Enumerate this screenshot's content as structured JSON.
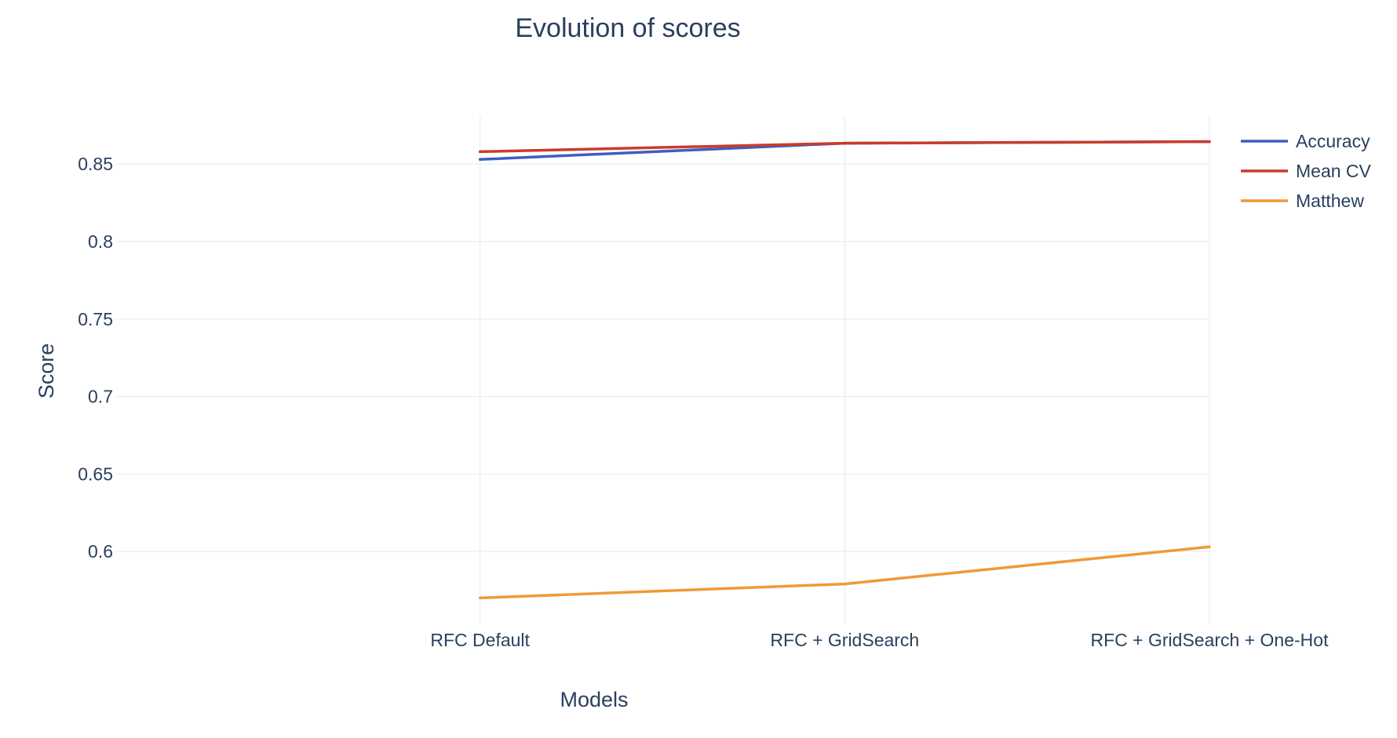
{
  "chart_data": {
    "type": "line",
    "title": "Evolution of scores",
    "xlabel": "Models",
    "ylabel": "Score",
    "categories": [
      "RFC Default",
      "RFC + GridSearch",
      "RFC + GridSearch + One-Hot"
    ],
    "x_range_categories": [
      -1,
      2
    ],
    "ylim": [
      0.5535,
      0.881
    ],
    "yticks": [
      0.6,
      0.65,
      0.7,
      0.75,
      0.8,
      0.85
    ],
    "ytick_labels": [
      "0.6",
      "0.65",
      "0.7",
      "0.75",
      "0.8",
      "0.85"
    ],
    "grid": true,
    "legend_position": "top-right",
    "series": [
      {
        "name": "Accuracy",
        "color": "#3d5ec2",
        "values": [
          0.853,
          0.8635,
          0.8645
        ]
      },
      {
        "name": "Mean CV",
        "color": "#c93c2b",
        "values": [
          0.858,
          0.8635,
          0.8645
        ]
      },
      {
        "name": "Matthew",
        "color": "#f09a35",
        "values": [
          0.57,
          0.579,
          0.603
        ]
      }
    ]
  }
}
